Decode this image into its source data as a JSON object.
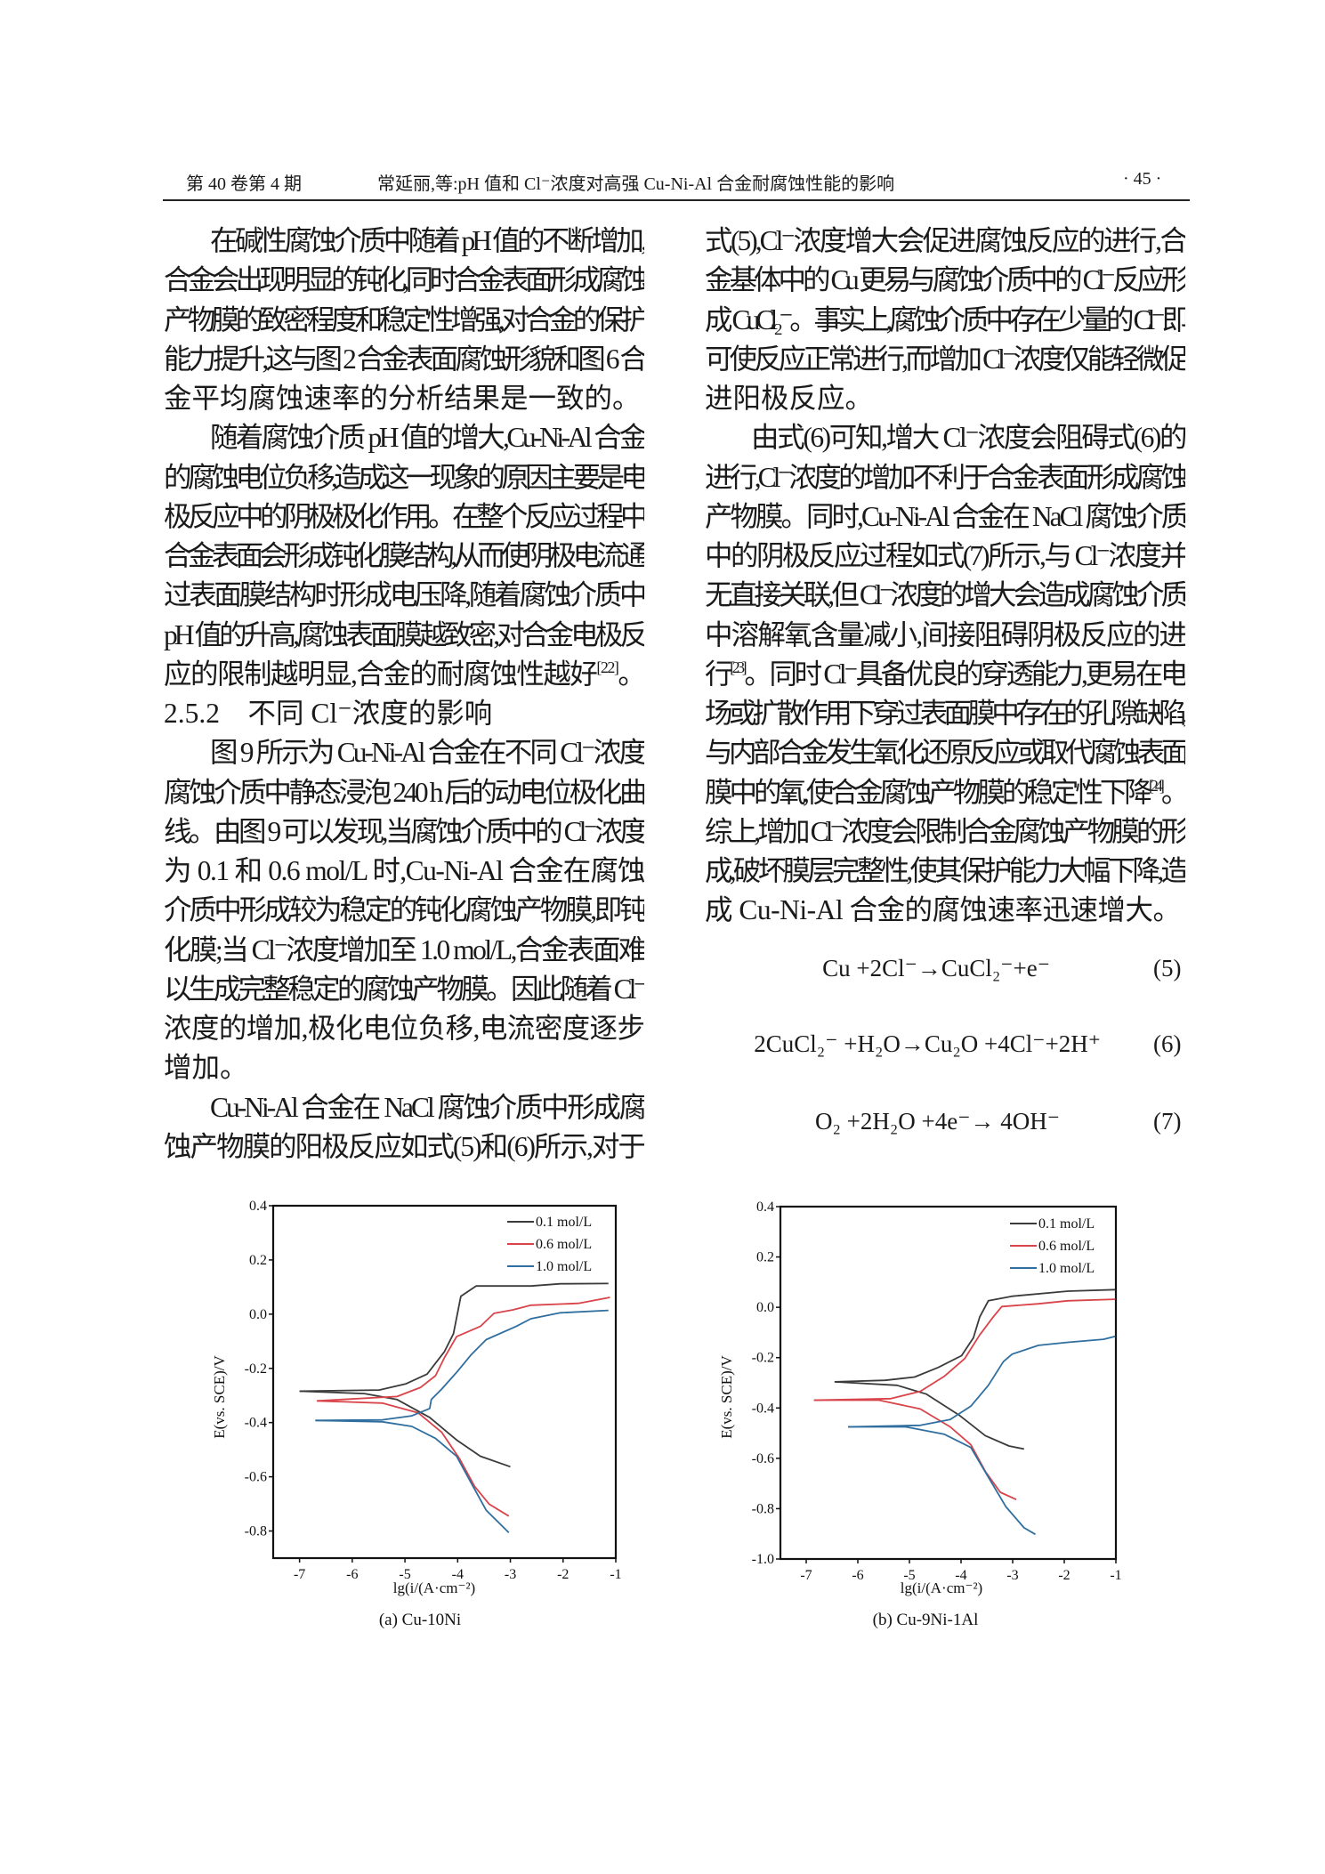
{
  "header": {
    "volume": "第 40 卷第 4 期",
    "title": "常延丽,等:pH 值和 Cl⁻浓度对高强 Cu-Ni-Al 合金耐腐蚀性能的影响",
    "page": "· 45 ·"
  },
  "left_column": [
    {
      "t": "在碱性腐蚀介质中随着 pH 值的不断增加,",
      "cls": "indent"
    },
    {
      "t": "合金会出现明显的钝化,同时合金表面形成腐蚀"
    },
    {
      "t": "产物膜的致密程度和稳定性增强,对合金的保护"
    },
    {
      "t": "能力提升,这与图 2 合金表面腐蚀形貌和图 6 合"
    },
    {
      "t": "金平均腐蚀速率的分析结果是一致的。",
      "cls": "last"
    },
    {
      "t": "随着腐蚀介质 pH 值的增大,Cu-Ni-Al 合金",
      "cls": "indent"
    },
    {
      "t": "的腐蚀电位负移,造成这一现象的原因主要是电"
    },
    {
      "t": "极反应中的阴极极化作用。在整个反应过程中"
    },
    {
      "t": "合金表面会形成钝化膜结构,从而使阴极电流通"
    },
    {
      "t": "过表面膜结构时形成电压降,随着腐蚀介质中"
    },
    {
      "t": "pH 值的升高,腐蚀表面膜越致密,对合金电极反"
    },
    {
      "t": "应的限制越明显,合金的耐腐蚀性越好",
      "sup": "[22]",
      "after": "。",
      "cls": "last"
    },
    {
      "t": "2.5.2　不同 Cl⁻浓度的影响",
      "cls": "heading"
    },
    {
      "t": "图 9 所示为 Cu-Ni-Al 合金在不同 Cl⁻浓度",
      "cls": "indent"
    },
    {
      "t": "腐蚀介质中静态浸泡 240 h 后的动电位极化曲"
    },
    {
      "t": "线。由图 9 可以发现,当腐蚀介质中的 Cl⁻浓度"
    },
    {
      "t": "为 0.1 和 0.6 mol/L 时,Cu-Ni-Al 合金在腐蚀"
    },
    {
      "t": "介质中形成较为稳定的钝化腐蚀产物膜,即钝"
    },
    {
      "t": "化膜;当 Cl⁻浓度增加至 1.0 mol/L,合金表面难"
    },
    {
      "t": "以生成完整稳定的腐蚀产物膜。因此随着 Cl⁻"
    },
    {
      "t": "浓度的增加,极化电位负移,电流密度逐步"
    },
    {
      "t": "增加。",
      "cls": "last"
    },
    {
      "t": "Cu-Ni-Al 合金在 NaCl 腐蚀介质中形成腐",
      "cls": "indent"
    },
    {
      "t": "蚀产物膜的阳极反应如式(5)和(6)所示,对于"
    }
  ],
  "right_column": [
    {
      "t": "式(5),Cl⁻浓度增大会促进腐蚀反应的进行,合"
    },
    {
      "t": "金基体中的 Cu 更易与腐蚀介质中的 Cl⁻反应形"
    },
    {
      "t": "成 CuCl₂⁻。事实上,腐蚀介质中存在少量的 Cl⁻即"
    },
    {
      "t": "可使反应正常进行,而增加 Cl⁻浓度仅能轻微促"
    },
    {
      "t": "进阳极反应。",
      "cls": "last"
    },
    {
      "t": "由式(6)可知,增大 Cl⁻浓度会阻碍式(6)的",
      "cls": "indent"
    },
    {
      "t": "进行,Cl⁻浓度的增加不利于合金表面形成腐蚀"
    },
    {
      "t": "产物膜。同时,Cu-Ni-Al 合金在 NaCl 腐蚀介质"
    },
    {
      "t": "中的阴极反应过程如式(7)所示,与 Cl⁻浓度并"
    },
    {
      "t": "无直接关联,但 Cl⁻浓度的增大会造成腐蚀介质"
    },
    {
      "t": "中溶解氧含量减小,间接阻碍阴极反应的进"
    },
    {
      "t": "行",
      "sup": "[23]",
      "after": "。同时 Cl⁻具备优良的穿透能力,更易在电"
    },
    {
      "t": "场或扩散作用下穿过表面膜中存在的孔隙缺陷,"
    },
    {
      "t": "与内部合金发生氧化还原反应或取代腐蚀表面"
    },
    {
      "t": "膜中的氧,使合金腐蚀产物膜的稳定性下降",
      "sup": "[24]",
      "after": "。"
    },
    {
      "t": "综上,增加 Cl⁻浓度会限制合金腐蚀产物膜的形"
    },
    {
      "t": "成,破坏膜层完整性,使其保护能力大幅下降,造"
    },
    {
      "t": "成 Cu-Ni-Al 合金的腐蚀速率迅速增大。",
      "cls": "last"
    }
  ],
  "equations": [
    {
      "text": "Cu +2Cl⁻→CuCl₂⁻+e⁻",
      "number": "(5)"
    },
    {
      "text": "2CuCl₂⁻ +H₂O→Cu₂O +4Cl⁻+2H⁺",
      "number": "(6)"
    },
    {
      "text": "O₂ +2H₂O +4e⁻→ 4OH⁻",
      "number": "(7)"
    }
  ],
  "chart_data": [
    {
      "type": "line",
      "caption": "(a)  Cu-10Ni",
      "xlabel": "lg(i/(A·cm⁻²)",
      "ylabel": "E(vs. SCE)/V",
      "xlim": [
        -7.5,
        -1
      ],
      "ylim": [
        -0.9,
        0.4
      ],
      "xticks": [
        -7,
        -6,
        -5,
        -4,
        -3,
        -2,
        -1
      ],
      "yticks": [
        0.4,
        0.2,
        0.0,
        -0.2,
        -0.4,
        -0.6,
        -0.8
      ],
      "ytick_labels": [
        "0.4",
        "0.2",
        "0.0",
        "-0.2",
        "-0.4",
        "-0.6",
        "-0.8"
      ],
      "grid": false,
      "legend": "top-right",
      "series": [
        {
          "name": "0.1 mol/L",
          "color": "#3b3b3b",
          "anodic": [
            [
              -7,
              -0.284
            ],
            [
              -5.49,
              -0.28
            ],
            [
              -4.98,
              -0.257
            ],
            [
              -4.58,
              -0.221
            ],
            [
              -4.25,
              -0.138
            ],
            [
              -4.08,
              -0.072
            ],
            [
              -3.94,
              0.066
            ],
            [
              -3.65,
              0.104
            ],
            [
              -2.61,
              0.104
            ],
            [
              -2.05,
              0.112
            ],
            [
              -1.14,
              0.113
            ]
          ],
          "cathodic": [
            [
              -7,
              -0.284
            ],
            [
              -5.77,
              -0.293
            ],
            [
              -5.15,
              -0.315
            ],
            [
              -4.53,
              -0.381
            ],
            [
              -4.02,
              -0.464
            ],
            [
              -3.57,
              -0.524
            ],
            [
              -3.0,
              -0.563
            ]
          ]
        },
        {
          "name": "0.6 mol/L",
          "color": "#d8444a",
          "anodic": [
            [
              -6.67,
              -0.32
            ],
            [
              -5.15,
              -0.304
            ],
            [
              -4.7,
              -0.27
            ],
            [
              -4.42,
              -0.227
            ],
            [
              -4.25,
              -0.16
            ],
            [
              -4.02,
              -0.083
            ],
            [
              -3.57,
              -0.045
            ],
            [
              -3.31,
              0.003
            ],
            [
              -2.95,
              0.016
            ],
            [
              -2.61,
              0.033
            ],
            [
              -1.71,
              0.04
            ],
            [
              -1.11,
              0.062
            ]
          ],
          "cathodic": [
            [
              -6.67,
              -0.32
            ],
            [
              -5.43,
              -0.328
            ],
            [
              -4.75,
              -0.364
            ],
            [
              -4.3,
              -0.436
            ],
            [
              -3.96,
              -0.535
            ],
            [
              -3.68,
              -0.635
            ],
            [
              -3.4,
              -0.701
            ],
            [
              -3.03,
              -0.745
            ]
          ]
        },
        {
          "name": "1.0 mol/L",
          "color": "#2f6e9e",
          "anodic": [
            [
              -6.7,
              -0.392
            ],
            [
              -5.43,
              -0.39
            ],
            [
              -4.87,
              -0.375
            ],
            [
              -4.53,
              -0.348
            ],
            [
              -4.5,
              -0.315
            ],
            [
              -4.3,
              -0.276
            ],
            [
              -4.02,
              -0.215
            ],
            [
              -3.74,
              -0.149
            ],
            [
              -3.46,
              -0.094
            ],
            [
              -2.89,
              -0.045
            ],
            [
              -2.61,
              -0.017
            ],
            [
              -2.05,
              0.005
            ],
            [
              -1.14,
              0.014
            ]
          ],
          "cathodic": [
            [
              -6.7,
              -0.392
            ],
            [
              -5.43,
              -0.397
            ],
            [
              -4.87,
              -0.414
            ],
            [
              -4.42,
              -0.458
            ],
            [
              -4.02,
              -0.524
            ],
            [
              -3.74,
              -0.624
            ],
            [
              -3.46,
              -0.723
            ],
            [
              -3.03,
              -0.806
            ]
          ]
        }
      ]
    },
    {
      "type": "line",
      "caption": "(b)  Cu-9Ni-1Al",
      "xlabel": "lg(i/(A·cm⁻²)",
      "ylabel": "E(vs. SCE)/V",
      "xlim": [
        -7.5,
        -1
      ],
      "ylim": [
        -1.0,
        0.4
      ],
      "xticks": [
        -7,
        -6,
        -5,
        -4,
        -3,
        -2,
        -1
      ],
      "yticks": [
        0.4,
        0.2,
        0.0,
        -0.2,
        -0.4,
        -0.6,
        -0.8,
        -1.0
      ],
      "ytick_labels": [
        "0.4",
        "0.2",
        "0.0",
        "-0.2",
        "-0.4",
        "-0.6",
        "-0.8",
        "-1.0"
      ],
      "grid": false,
      "legend": "top-right",
      "series": [
        {
          "name": "0.1 mol/L",
          "color": "#3b3b3b",
          "anodic": [
            [
              -6.45,
              -0.296
            ],
            [
              -5.47,
              -0.29
            ],
            [
              -4.9,
              -0.277
            ],
            [
              -4.44,
              -0.239
            ],
            [
              -3.99,
              -0.192
            ],
            [
              -3.76,
              -0.121
            ],
            [
              -3.64,
              -0.039
            ],
            [
              -3.47,
              0.026
            ],
            [
              -3.01,
              0.044
            ],
            [
              -1.93,
              0.064
            ],
            [
              -1.01,
              0.07
            ]
          ],
          "cathodic": [
            [
              -6.45,
              -0.296
            ],
            [
              -5.24,
              -0.31
            ],
            [
              -4.67,
              -0.345
            ],
            [
              -4.04,
              -0.428
            ],
            [
              -3.53,
              -0.51
            ],
            [
              -3.07,
              -0.551
            ],
            [
              -2.78,
              -0.563
            ]
          ]
        },
        {
          "name": "0.6 mol/L",
          "color": "#d8444a",
          "anodic": [
            [
              -6.85,
              -0.369
            ],
            [
              -5.36,
              -0.363
            ],
            [
              -4.79,
              -0.334
            ],
            [
              -4.33,
              -0.275
            ],
            [
              -3.93,
              -0.204
            ],
            [
              -3.64,
              -0.11
            ],
            [
              -3.38,
              -0.039
            ],
            [
              -3.21,
              0.003
            ],
            [
              -2.5,
              0.014
            ],
            [
              -1.93,
              0.026
            ],
            [
              -1.01,
              0.032
            ]
          ],
          "cathodic": [
            [
              -6.85,
              -0.369
            ],
            [
              -5.59,
              -0.369
            ],
            [
              -4.79,
              -0.404
            ],
            [
              -4.21,
              -0.475
            ],
            [
              -3.81,
              -0.546
            ],
            [
              -3.53,
              -0.652
            ],
            [
              -3.24,
              -0.735
            ],
            [
              -2.93,
              -0.764
            ]
          ]
        },
        {
          "name": "1.0 mol/L",
          "color": "#2f6e9e",
          "anodic": [
            [
              -6.19,
              -0.475
            ],
            [
              -4.79,
              -0.469
            ],
            [
              -4.21,
              -0.446
            ],
            [
              -3.81,
              -0.393
            ],
            [
              -3.47,
              -0.31
            ],
            [
              -3.18,
              -0.216
            ],
            [
              -3.01,
              -0.186
            ],
            [
              -2.5,
              -0.151
            ],
            [
              -1.93,
              -0.139
            ],
            [
              -1.24,
              -0.127
            ],
            [
              -1.01,
              -0.115
            ]
          ],
          "cathodic": [
            [
              -6.19,
              -0.475
            ],
            [
              -5.07,
              -0.475
            ],
            [
              -4.33,
              -0.504
            ],
            [
              -3.81,
              -0.557
            ],
            [
              -3.47,
              -0.675
            ],
            [
              -3.13,
              -0.793
            ],
            [
              -2.78,
              -0.876
            ],
            [
              -2.56,
              -0.902
            ]
          ]
        }
      ]
    }
  ]
}
